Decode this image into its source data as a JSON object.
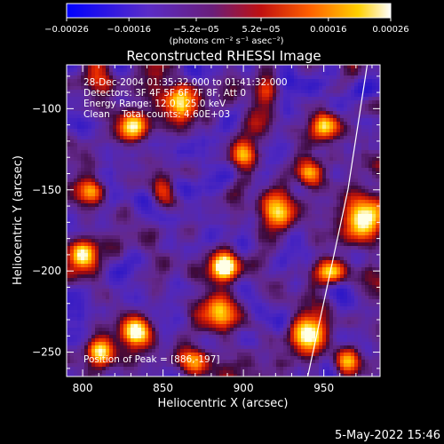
{
  "chart_data": {
    "type": "heatmap",
    "title": "Reconstructed RHESSI Image",
    "xlabel": "Heliocentric X (arcsec)",
    "ylabel": "Heliocentric Y (arcsec)",
    "xlim": [
      790,
      985
    ],
    "ylim": [
      -265,
      -73
    ],
    "x_ticks": [
      800,
      850,
      900,
      950
    ],
    "y_ticks": [
      -250,
      -200,
      -150,
      -100
    ],
    "x_tick_labels": [
      "800",
      "850",
      "900",
      "950"
    ],
    "y_tick_labels": [
      "−250",
      "−200",
      "−150",
      "−100"
    ],
    "colormap": "rainbow-like: blue-purple-red-orange-yellow-white",
    "colorbar": {
      "range": [
        -0.00026,
        0.00026
      ],
      "tick_values": [
        -0.00026,
        -0.00016,
        -5.2e-05,
        5.2e-05,
        0.00016,
        0.00026
      ],
      "tick_labels": [
        "−0.00026",
        "−0.00016",
        "−5.2e−05",
        "5.2e−05",
        "0.00016",
        "0.00026"
      ],
      "unit_label": "(photons cm⁻² s⁻¹ asec⁻²)"
    },
    "annotations": [
      "28-Dec-2004 01:35:32.000 to 01:41:32.000",
      "Detectors: 3F 4F 5F 6F 7F 8F, Att 0",
      "Energy Range: 12.0 - 25.0 keV",
      "Clean    Total counts: 4.60E+03"
    ],
    "peak_label": "Position of Peak = [886,-197]",
    "peak_position": [
      886,
      -197
    ],
    "limb_curve": [
      [
        977,
        -73
      ],
      [
        965,
        -150
      ],
      [
        952,
        -210
      ],
      [
        940,
        -265
      ]
    ],
    "bright_sources": [
      {
        "x": 888,
        "y": -197,
        "amp": 1.0,
        "spread": 6
      },
      {
        "x": 833,
        "y": -237,
        "amp": 0.95,
        "spread": 7
      },
      {
        "x": 810,
        "y": -250,
        "amp": 0.9,
        "spread": 6
      },
      {
        "x": 920,
        "y": -163,
        "amp": 0.9,
        "spread": 7
      },
      {
        "x": 940,
        "y": -238,
        "amp": 0.85,
        "spread": 8
      },
      {
        "x": 975,
        "y": -170,
        "amp": 0.85,
        "spread": 8
      },
      {
        "x": 950,
        "y": -110,
        "amp": 0.7,
        "spread": 6
      },
      {
        "x": 860,
        "y": -95,
        "amp": 0.7,
        "spread": 7
      },
      {
        "x": 830,
        "y": -110,
        "amp": 0.65,
        "spread": 7
      },
      {
        "x": 800,
        "y": -190,
        "amp": 0.8,
        "spread": 6
      },
      {
        "x": 885,
        "y": -225,
        "amp": 0.7,
        "spread": 7
      },
      {
        "x": 900,
        "y": -130,
        "amp": 0.6,
        "spread": 6
      },
      {
        "x": 955,
        "y": -200,
        "amp": 0.75,
        "spread": 6
      },
      {
        "x": 850,
        "y": -150,
        "amp": 0.55,
        "spread": 6
      },
      {
        "x": 915,
        "y": -90,
        "amp": 0.55,
        "spread": 6
      },
      {
        "x": 870,
        "y": -255,
        "amp": 0.6,
        "spread": 6
      },
      {
        "x": 940,
        "y": -140,
        "amp": 0.6,
        "spread": 6
      },
      {
        "x": 805,
        "y": -150,
        "amp": 0.55,
        "spread": 6
      },
      {
        "x": 965,
        "y": -255,
        "amp": 0.6,
        "spread": 6
      }
    ],
    "grid": false
  },
  "footer": {
    "date_label": "5-May-2022 15:46"
  }
}
